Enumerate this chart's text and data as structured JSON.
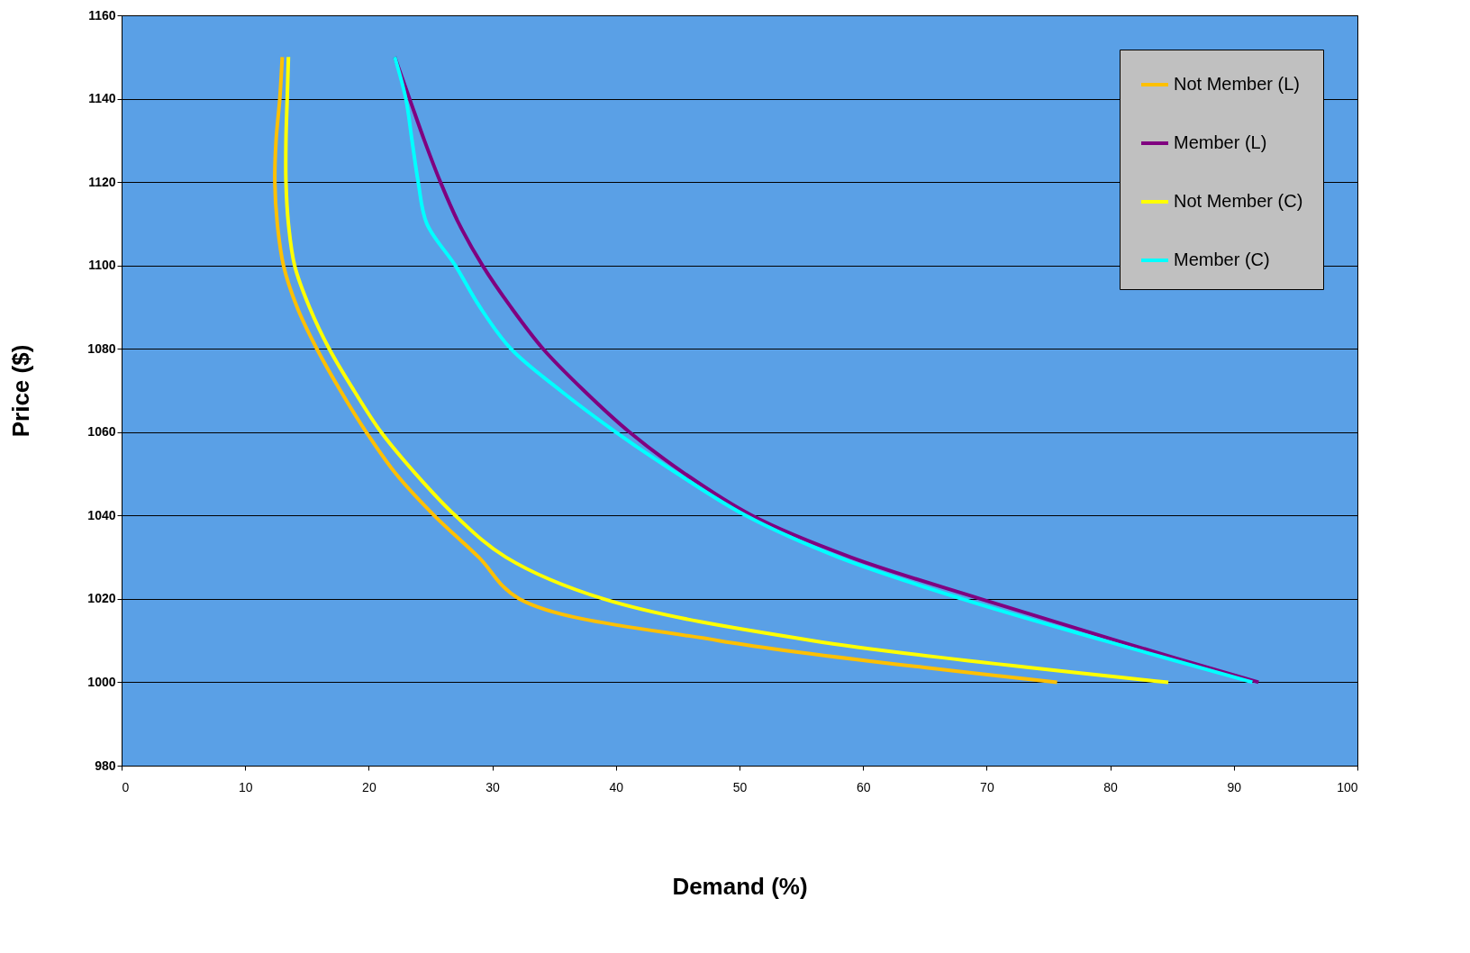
{
  "chart_data": {
    "type": "line",
    "xlabel": "Demand (%)",
    "ylabel": "Price ($)",
    "xlim": [
      0,
      100
    ],
    "xticks": [
      0,
      10,
      20,
      30,
      40,
      50,
      60,
      70,
      80,
      90,
      100
    ],
    "ylim": [
      980,
      1160
    ],
    "yticks": [
      980,
      1000,
      1020,
      1040,
      1060,
      1080,
      1100,
      1120,
      1140,
      1160
    ],
    "grid": "y",
    "legend": "top right",
    "line_style": "solid",
    "marker": "none",
    "series": [
      {
        "name": "Not Member (L)",
        "color": "#ffc000",
        "x": [
          13,
          12.8,
          12.5,
          12.4,
          12.6,
          13.1,
          14.2,
          15.8,
          17.7,
          19.8,
          22.2,
          25.3,
          28.9,
          32.2,
          48.3,
          75.7
        ],
        "values": [
          1150,
          1140,
          1130,
          1120,
          1110,
          1100,
          1090,
          1080,
          1070,
          1060,
          1050,
          1040,
          1030,
          1020,
          1010,
          1000
        ]
      },
      {
        "name": "Member (L)",
        "color": "#800080",
        "x": [
          22.1,
          23.3,
          24.5,
          25.8,
          27.3,
          29.2,
          31.5,
          34.1,
          37.4,
          41.1,
          45.6,
          51,
          59,
          69.5,
          80.5,
          92
        ],
        "values": [
          1150,
          1140,
          1130,
          1120,
          1110,
          1100,
          1090,
          1080,
          1070,
          1060,
          1050,
          1040,
          1030,
          1020,
          1010,
          1000
        ]
      },
      {
        "name": "Not Member (C)",
        "color": "#ffff00",
        "x": [
          13.5,
          13.4,
          13.3,
          13.3,
          13.5,
          14,
          15.2,
          16.8,
          18.8,
          21,
          23.8,
          27,
          31.1,
          39,
          55.9,
          84.7
        ],
        "values": [
          1150,
          1140,
          1130,
          1120,
          1110,
          1100,
          1090,
          1080,
          1070,
          1060,
          1050,
          1040,
          1030,
          1020,
          1010,
          1000
        ]
      },
      {
        "name": "Member (C)",
        "color": "#00ffff",
        "x": [
          22.1,
          23,
          23.5,
          24,
          24.7,
          27,
          29,
          31.5,
          35.5,
          40,
          45,
          50.5,
          58,
          68,
          79.5,
          91.5
        ],
        "values": [
          1150,
          1140,
          1130,
          1120,
          1110,
          1100,
          1090,
          1080,
          1070,
          1060,
          1050,
          1040,
          1030,
          1020,
          1010,
          1000
        ]
      }
    ]
  }
}
